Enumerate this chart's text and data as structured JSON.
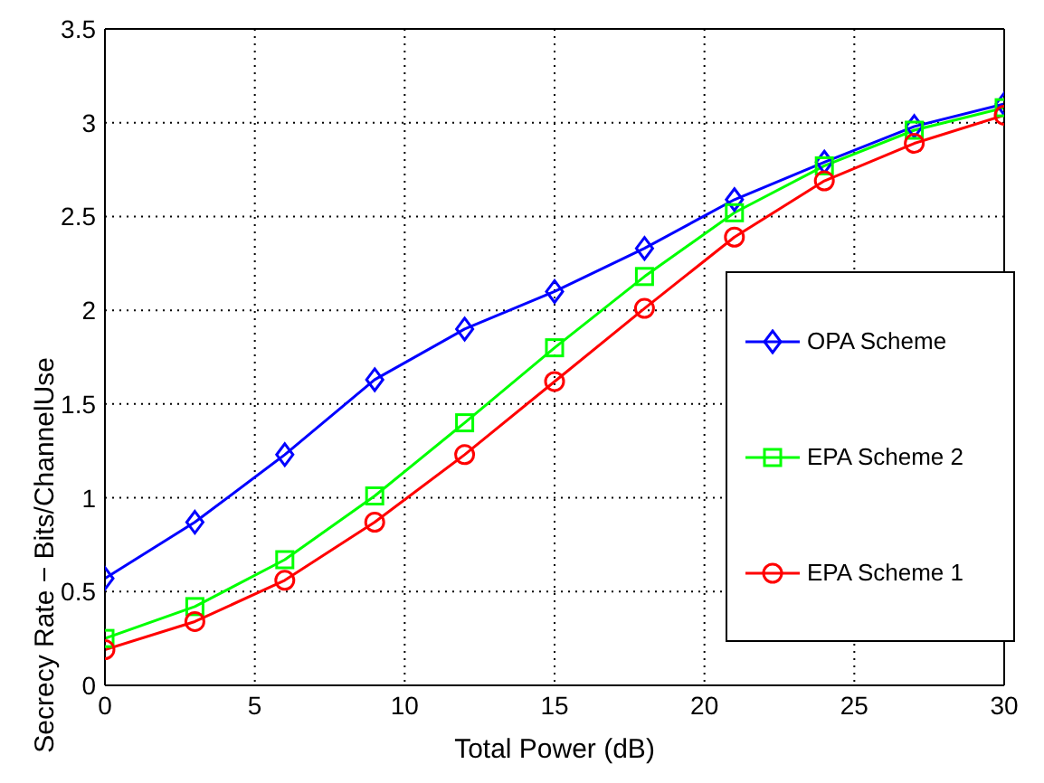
{
  "chart_data": {
    "type": "line",
    "xlabel": "Total Power (dB)",
    "ylabel": "Secrecy Rate − Bits/ChannelUse",
    "x": [
      0,
      3,
      6,
      9,
      12,
      15,
      18,
      21,
      24,
      27,
      30
    ],
    "series": [
      {
        "name": "OPA Scheme",
        "color": "#0000ff",
        "marker": "diamond",
        "values": [
          0.57,
          0.87,
          1.23,
          1.63,
          1.9,
          2.1,
          2.33,
          2.59,
          2.79,
          2.98,
          3.1
        ]
      },
      {
        "name": "EPA Scheme 2",
        "color": "#00ff00",
        "marker": "square",
        "values": [
          0.25,
          0.42,
          0.67,
          1.01,
          1.4,
          1.8,
          2.18,
          2.52,
          2.77,
          2.96,
          3.08
        ]
      },
      {
        "name": "EPA Scheme 1",
        "color": "#ff0000",
        "marker": "circle",
        "values": [
          0.19,
          0.34,
          0.56,
          0.87,
          1.23,
          1.62,
          2.01,
          2.39,
          2.69,
          2.89,
          3.04
        ]
      }
    ],
    "xlim": [
      0,
      30
    ],
    "xticks": [
      0,
      5,
      10,
      15,
      20,
      25,
      30
    ],
    "ylim": [
      0,
      3.5
    ],
    "yticks": [
      0,
      0.5,
      1,
      1.5,
      2,
      2.5,
      3,
      3.5
    ],
    "grid": true,
    "legend": "bottom right",
    "line_style": "solid"
  }
}
